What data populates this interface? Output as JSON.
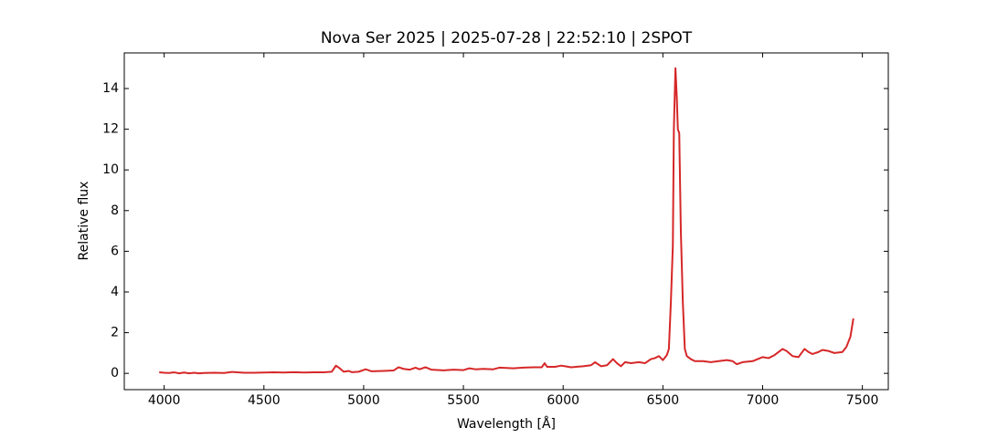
{
  "chart_data": {
    "type": "line",
    "title": "Nova Ser 2025 | 2025-07-28 | 22:52:10 | 2SPOT",
    "xlabel": "Wavelength [Å]",
    "ylabel": "Relative flux",
    "xlim": [
      3800,
      7630
    ],
    "ylim": [
      -0.8,
      15.75
    ],
    "xticks": [
      4000,
      4500,
      5000,
      5500,
      6000,
      6500,
      7000,
      7500
    ],
    "yticks": [
      0,
      2,
      4,
      6,
      8,
      10,
      12,
      14
    ],
    "grid": false,
    "series": [
      {
        "color": "#d62728",
        "x": [
          3975,
          4000,
          4025,
          4050,
          4075,
          4100,
          4125,
          4150,
          4175,
          4200,
          4250,
          4300,
          4340,
          4400,
          4450,
          4500,
          4550,
          4600,
          4650,
          4700,
          4750,
          4800,
          4840,
          4861,
          4880,
          4900,
          4925,
          4940,
          4975,
          5010,
          5040,
          5100,
          5150,
          5175,
          5200,
          5230,
          5260,
          5280,
          5310,
          5340,
          5400,
          5450,
          5500,
          5530,
          5560,
          5600,
          5650,
          5680,
          5750,
          5800,
          5850,
          5893,
          5907,
          5920,
          5960,
          5990,
          6010,
          6040,
          6100,
          6140,
          6160,
          6190,
          6220,
          6250,
          6270,
          6290,
          6310,
          6340,
          6380,
          6410,
          6440,
          6460,
          6480,
          6500,
          6520,
          6530,
          6540,
          6550,
          6555,
          6563,
          6570,
          6575,
          6582,
          6590,
          6600,
          6610,
          6620,
          6640,
          6660,
          6700,
          6740,
          6780,
          6820,
          6850,
          6870,
          6900,
          6950,
          7000,
          7030,
          7060,
          7100,
          7120,
          7150,
          7180,
          7210,
          7230,
          7250,
          7280,
          7300,
          7330,
          7360,
          7400,
          7420,
          7440,
          7455
        ],
        "values": [
          0.05,
          0.03,
          0.02,
          0.05,
          0.0,
          0.04,
          0.0,
          0.03,
          0.0,
          0.02,
          0.03,
          0.02,
          0.07,
          0.03,
          0.03,
          0.04,
          0.05,
          0.04,
          0.06,
          0.04,
          0.05,
          0.05,
          0.08,
          0.38,
          0.25,
          0.08,
          0.12,
          0.06,
          0.08,
          0.2,
          0.1,
          0.12,
          0.14,
          0.3,
          0.22,
          0.18,
          0.28,
          0.2,
          0.3,
          0.18,
          0.15,
          0.18,
          0.16,
          0.25,
          0.2,
          0.22,
          0.2,
          0.28,
          0.25,
          0.28,
          0.3,
          0.3,
          0.5,
          0.32,
          0.32,
          0.38,
          0.35,
          0.3,
          0.35,
          0.4,
          0.55,
          0.35,
          0.4,
          0.7,
          0.5,
          0.35,
          0.55,
          0.5,
          0.55,
          0.5,
          0.7,
          0.75,
          0.85,
          0.65,
          0.9,
          1.2,
          3.5,
          6.3,
          12.0,
          15.0,
          13.5,
          12.0,
          11.8,
          7.0,
          3.5,
          1.2,
          0.85,
          0.7,
          0.6,
          0.6,
          0.55,
          0.6,
          0.65,
          0.6,
          0.45,
          0.55,
          0.6,
          0.8,
          0.75,
          0.9,
          1.2,
          1.1,
          0.85,
          0.8,
          1.2,
          1.05,
          0.95,
          1.05,
          1.15,
          1.1,
          1.0,
          1.05,
          1.3,
          1.8,
          2.7
        ]
      }
    ]
  }
}
